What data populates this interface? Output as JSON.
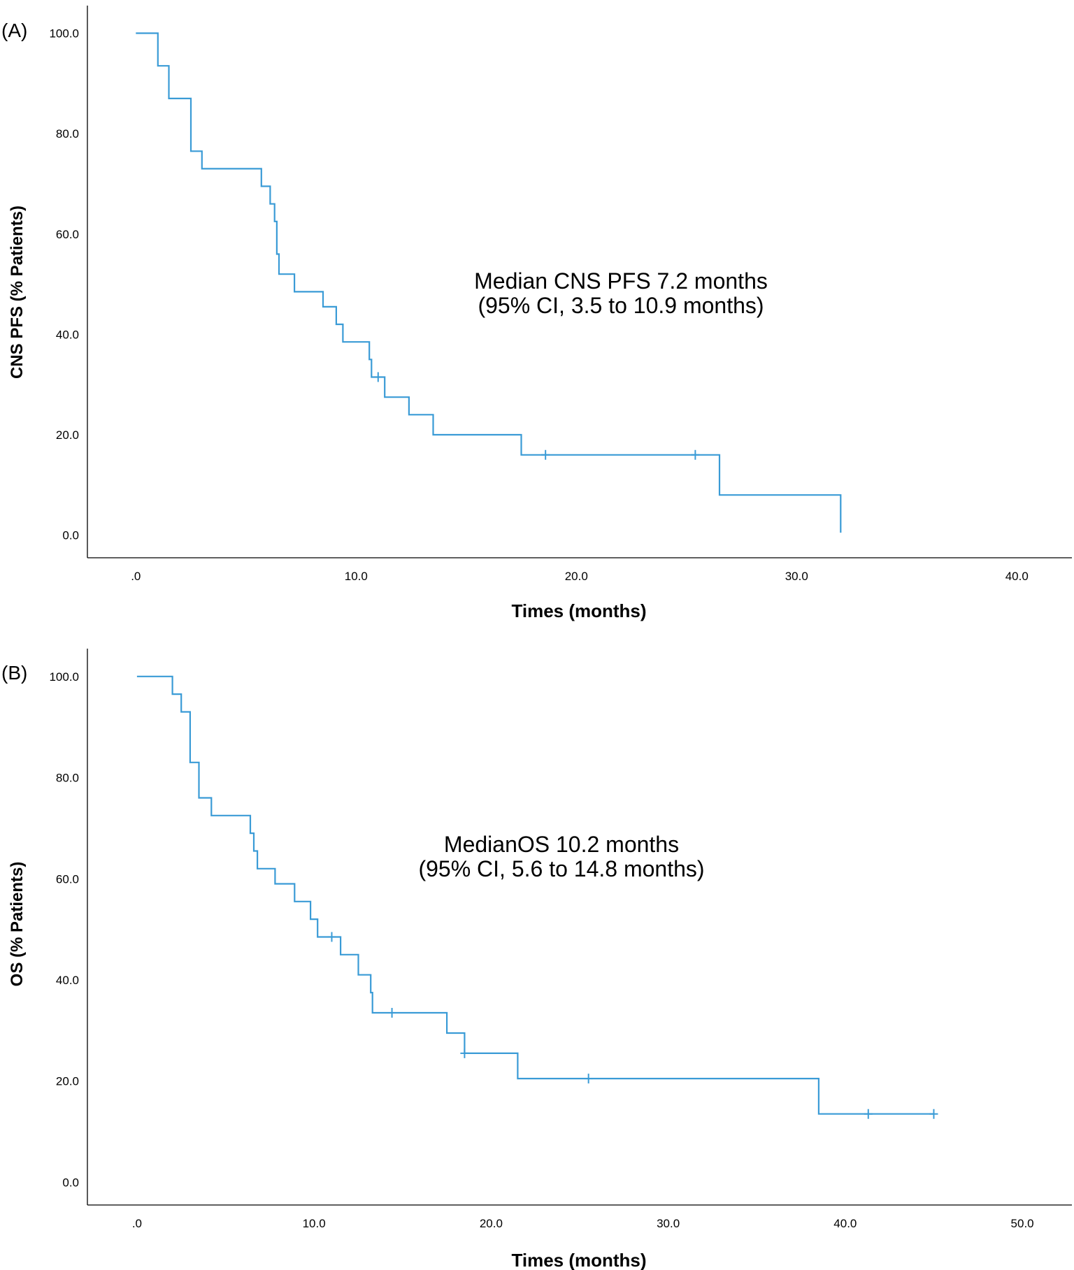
{
  "chart_data": [
    {
      "type": "line",
      "subtype": "kaplan-meier",
      "panel_label": "(A)",
      "xlabel": "Times (months)",
      "ylabel": "CNS PFS (% Patients)",
      "xlim": [
        -2.2,
        42.5
      ],
      "ylim": [
        -4.5,
        105.5
      ],
      "xticks": [
        ".0",
        "10.0",
        "20.0",
        "30.0",
        "40.0"
      ],
      "xtick_values": [
        0,
        10,
        20,
        30,
        40
      ],
      "yticks": [
        "0.0",
        "20.0",
        "40.0",
        "60.0",
        "80.0",
        "100.0"
      ],
      "ytick_values": [
        0,
        20,
        40,
        60,
        80,
        100
      ],
      "annotation": [
        "Median CNS PFS 7.2 months",
        "(95% CI, 3.5 to 10.9 months)"
      ],
      "line_color": "#3a9bd6",
      "series": [
        {
          "name": "CNS PFS",
          "steps": [
            [
              0,
              100
            ],
            [
              1.0,
              93.5
            ],
            [
              1.5,
              87.0
            ],
            [
              2.5,
              76.5
            ],
            [
              3.0,
              73.0
            ],
            [
              5.7,
              69.5
            ],
            [
              6.1,
              66.0
            ],
            [
              6.3,
              62.5
            ],
            [
              6.4,
              56.0
            ],
            [
              6.5,
              52.0
            ],
            [
              7.2,
              48.5
            ],
            [
              8.5,
              45.5
            ],
            [
              9.1,
              42.0
            ],
            [
              9.4,
              38.5
            ],
            [
              10.6,
              35.0
            ],
            [
              10.7,
              31.5
            ],
            [
              11.3,
              27.5
            ],
            [
              12.4,
              24.0
            ],
            [
              13.5,
              20.0
            ],
            [
              17.5,
              16.0
            ],
            [
              26.5,
              8.0
            ],
            [
              32.0,
              0.5
            ]
          ],
          "end_time": 32.0,
          "censored": [
            [
              11.0,
              31.5
            ],
            [
              18.6,
              16.0
            ],
            [
              25.4,
              16.0
            ]
          ]
        }
      ]
    },
    {
      "type": "line",
      "subtype": "kaplan-meier",
      "panel_label": "(B)",
      "xlabel": "Times (months)",
      "ylabel": "OS (% Patients)",
      "xlim": [
        -2.8,
        52.8
      ],
      "ylim": [
        -4.5,
        105.5
      ],
      "xticks": [
        ".0",
        "10.0",
        "20.0",
        "30.0",
        "40.0",
        "50.0"
      ],
      "xtick_values": [
        0,
        10,
        20,
        30,
        40,
        50
      ],
      "yticks": [
        "0.0",
        "20.0",
        "40.0",
        "60.0",
        "80.0",
        "100.0"
      ],
      "ytick_values": [
        0,
        20,
        40,
        60,
        80,
        100
      ],
      "annotation": [
        "MedianOS 10.2 months",
        "(95% CI, 5.6 to 14.8 months)"
      ],
      "line_color": "#3a9bd6",
      "series": [
        {
          "name": "OS",
          "steps": [
            [
              0,
              100
            ],
            [
              2.0,
              96.5
            ],
            [
              2.5,
              93.0
            ],
            [
              3.0,
              83.0
            ],
            [
              3.5,
              76.0
            ],
            [
              4.2,
              72.5
            ],
            [
              6.4,
              69.0
            ],
            [
              6.6,
              65.5
            ],
            [
              6.8,
              62.0
            ],
            [
              7.8,
              59.0
            ],
            [
              8.9,
              55.5
            ],
            [
              9.8,
              52.0
            ],
            [
              10.2,
              48.5
            ],
            [
              11.5,
              45.0
            ],
            [
              12.5,
              41.0
            ],
            [
              13.2,
              37.5
            ],
            [
              13.3,
              33.5
            ],
            [
              17.5,
              29.5
            ],
            [
              18.5,
              25.5
            ],
            [
              21.5,
              20.5
            ],
            [
              38.5,
              13.5
            ]
          ],
          "end_time": 45.0,
          "censored": [
            [
              11.0,
              48.5
            ],
            [
              14.4,
              33.5
            ],
            [
              18.5,
              25.5
            ],
            [
              25.5,
              20.5
            ],
            [
              41.3,
              13.5
            ],
            [
              45.0,
              13.5
            ]
          ]
        }
      ]
    }
  ]
}
